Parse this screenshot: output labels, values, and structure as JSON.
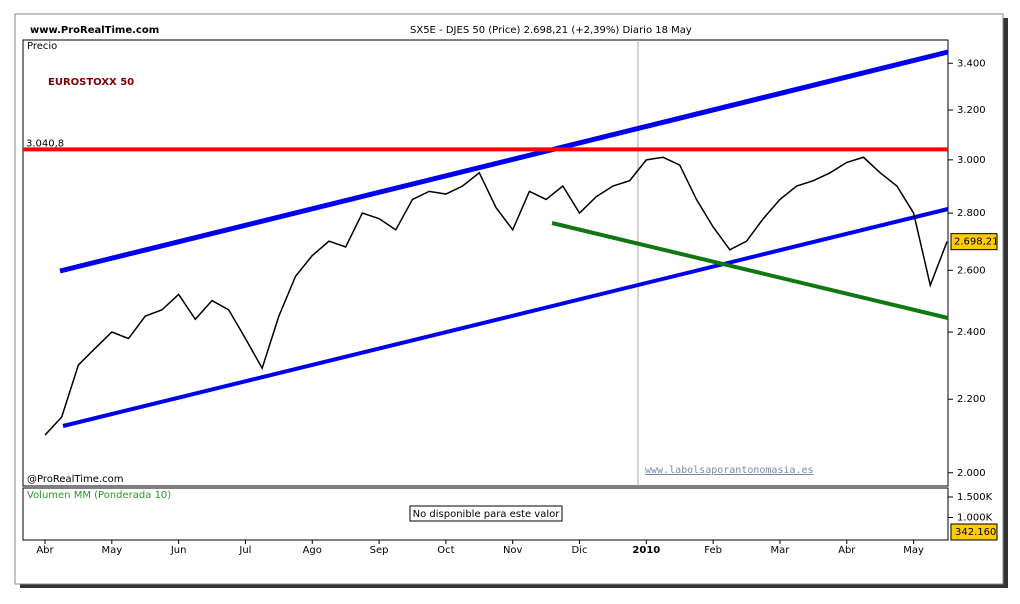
{
  "header": {
    "site": "www.ProRealTime.com",
    "info": "SX5E - DJES 50 (Price)   2.698,21 (+2,39%)   Diario  18 May"
  },
  "chart_data": {
    "type": "line",
    "title": "EUROSTOXX 50",
    "axis_title": "Precio",
    "credit": "@ProRealTime.com",
    "watermark": "www.labolsaporantonomasia.es",
    "categories": [
      "Abr",
      null,
      null,
      null,
      "May",
      null,
      null,
      null,
      "Jun",
      null,
      null,
      null,
      "Jul",
      null,
      null,
      null,
      "Ago",
      null,
      null,
      null,
      "Sep",
      null,
      null,
      null,
      "Oct",
      null,
      null,
      null,
      "Nov",
      null,
      null,
      null,
      "Dic",
      null,
      null,
      null,
      "2010",
      null,
      null,
      null,
      "Feb",
      null,
      null,
      null,
      "Mar",
      null,
      null,
      null,
      "Abr",
      null,
      null,
      null,
      "May",
      null,
      null
    ],
    "series": [
      {
        "name": "SX5E",
        "color": "#000000",
        "values": [
          2100,
          2150,
          2300,
          2350,
          2400,
          2380,
          2450,
          2470,
          2520,
          2440,
          2500,
          2470,
          2380,
          2290,
          2450,
          2580,
          2650,
          2700,
          2680,
          2800,
          2780,
          2740,
          2850,
          2880,
          2870,
          2900,
          2950,
          2820,
          2740,
          2880,
          2850,
          2900,
          2800,
          2860,
          2900,
          2920,
          3000,
          3010,
          2980,
          2850,
          2750,
          2670,
          2700,
          2780,
          2850,
          2900,
          2920,
          2950,
          2990,
          3010,
          2950,
          2900,
          2800,
          2550,
          2698.21
        ],
        "value_labels": [
          null,
          null,
          null,
          null,
          null,
          null,
          null,
          null,
          null,
          null,
          null,
          null,
          null,
          null,
          null,
          null,
          null,
          null,
          null,
          null,
          null,
          null,
          null,
          null,
          null,
          null,
          null,
          null,
          null,
          null,
          null,
          null,
          null,
          null,
          null,
          null,
          null,
          null,
          null,
          null,
          null,
          null,
          null,
          null,
          null,
          null,
          null,
          null,
          null,
          null,
          null,
          null,
          null,
          null,
          "2.698,21"
        ]
      }
    ],
    "log_scale": true,
    "ylim": [
      1966,
      3504
    ],
    "yticks": [
      {
        "value": 2000,
        "label": "2.000"
      },
      {
        "value": 2200,
        "label": "2.200"
      },
      {
        "value": 2400,
        "label": "2.400"
      },
      {
        "value": 2600,
        "label": "2.600"
      },
      {
        "value": 2800,
        "label": "2.800"
      },
      {
        "value": 3000,
        "label": "3.000"
      },
      {
        "value": 3200,
        "label": "3.200"
      },
      {
        "value": 3400,
        "label": "3.400"
      }
    ],
    "hline": {
      "value": 3040.8,
      "label": "3.040,8",
      "color": "#ff0000"
    }
  },
  "volume": {
    "title": "Volumen MM (Ponderada 10)",
    "note": "No disponible para este valor",
    "ylim": [
      450000,
      1720000
    ],
    "yticks": [
      {
        "value": 1000000,
        "label": "1.000K"
      },
      {
        "value": 1500000,
        "label": "1.500K"
      }
    ],
    "last": {
      "value": 342160,
      "label": "342.160"
    }
  }
}
